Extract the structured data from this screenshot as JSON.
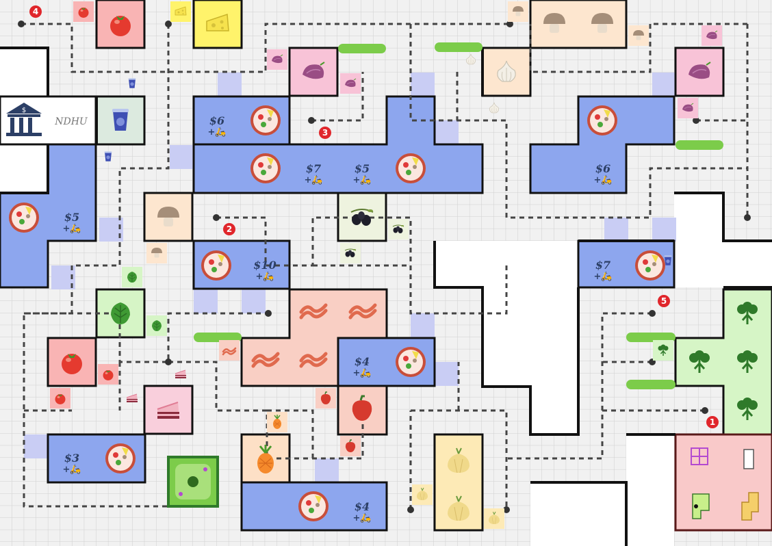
{
  "colors": {
    "grid_line": "#cfcfcf",
    "grid_bg": "#ececec",
    "wall": "#111111",
    "pizzeria": "#8da6ee",
    "path": "#444444",
    "marker": "#e0262b",
    "tag_purple": "#c9cdf4"
  },
  "bank": {
    "label": "NDHU",
    "icon": "bank-icon"
  },
  "pizzerias": [
    {
      "price": "$6",
      "delivery": "+🛵"
    },
    {
      "price": "$7",
      "delivery": "+🛵"
    },
    {
      "price": "$5",
      "delivery": "+🛵"
    },
    {
      "price": "$6",
      "delivery": "+🛵"
    },
    {
      "price": "$5",
      "delivery": "+🛵"
    },
    {
      "price": "$10",
      "delivery": "+🛵"
    },
    {
      "price": "$7",
      "delivery": "+🛵"
    },
    {
      "price": "$4",
      "delivery": "+🛵"
    },
    {
      "price": "$3",
      "delivery": "+🛵"
    },
    {
      "price": "$4",
      "delivery": "+🛵"
    }
  ],
  "markers": [
    "1",
    "2",
    "3",
    "4",
    "5"
  ],
  "ingredients": [
    "tomato",
    "cheese",
    "mushroom",
    "garlic",
    "purple-onion",
    "drink",
    "olive",
    "spinach",
    "bacon",
    "cake",
    "pepper",
    "pineapple",
    "onion",
    "broccoli"
  ]
}
